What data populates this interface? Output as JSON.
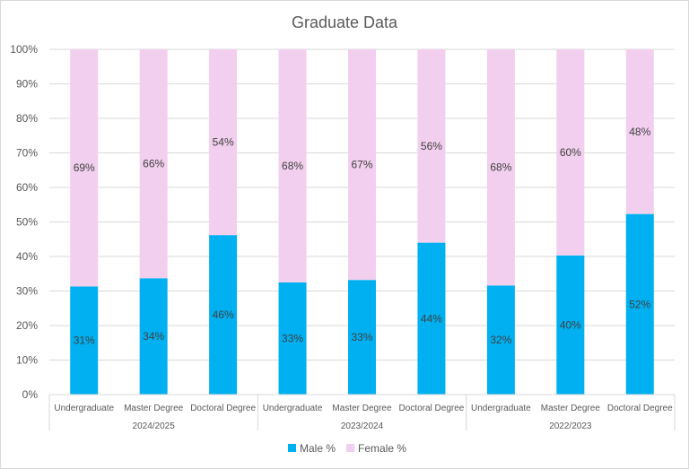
{
  "chart_data": {
    "type": "bar",
    "stacked": "100%",
    "title": "Graduate Data",
    "categories": [
      "Undergraduate",
      "Master Degree",
      "Doctoral Degree",
      "Undergraduate",
      "Master Degree",
      "Doctoral Degree",
      "Undergraduate",
      "Master Degree",
      "Doctoral Degree"
    ],
    "groups": [
      {
        "label": "2024/2025",
        "span": 3
      },
      {
        "label": "2023/2024",
        "span": 3
      },
      {
        "label": "2022/2023",
        "span": 3
      }
    ],
    "series": [
      {
        "name": "Male %",
        "color": "#00b0f0",
        "values": [
          31.3,
          33.7,
          46.2,
          32.5,
          33.2,
          44.0,
          31.6,
          40.3,
          52.3
        ],
        "labels": [
          "31%",
          "34%",
          "46%",
          "33%",
          "33%",
          "44%",
          "32%",
          "40%",
          "52%"
        ]
      },
      {
        "name": "Female %",
        "color": "#f2cfee",
        "values": [
          68.7,
          66.3,
          53.8,
          67.5,
          66.8,
          56.0,
          68.4,
          59.7,
          47.7
        ],
        "labels": [
          "69%",
          "66%",
          "54%",
          "68%",
          "67%",
          "56%",
          "68%",
          "60%",
          "48%"
        ]
      }
    ],
    "yticks": [
      "0%",
      "10%",
      "20%",
      "30%",
      "40%",
      "50%",
      "60%",
      "70%",
      "80%",
      "90%",
      "100%"
    ],
    "ylim": [
      0,
      100
    ],
    "grid": true,
    "legend": "bottom"
  }
}
